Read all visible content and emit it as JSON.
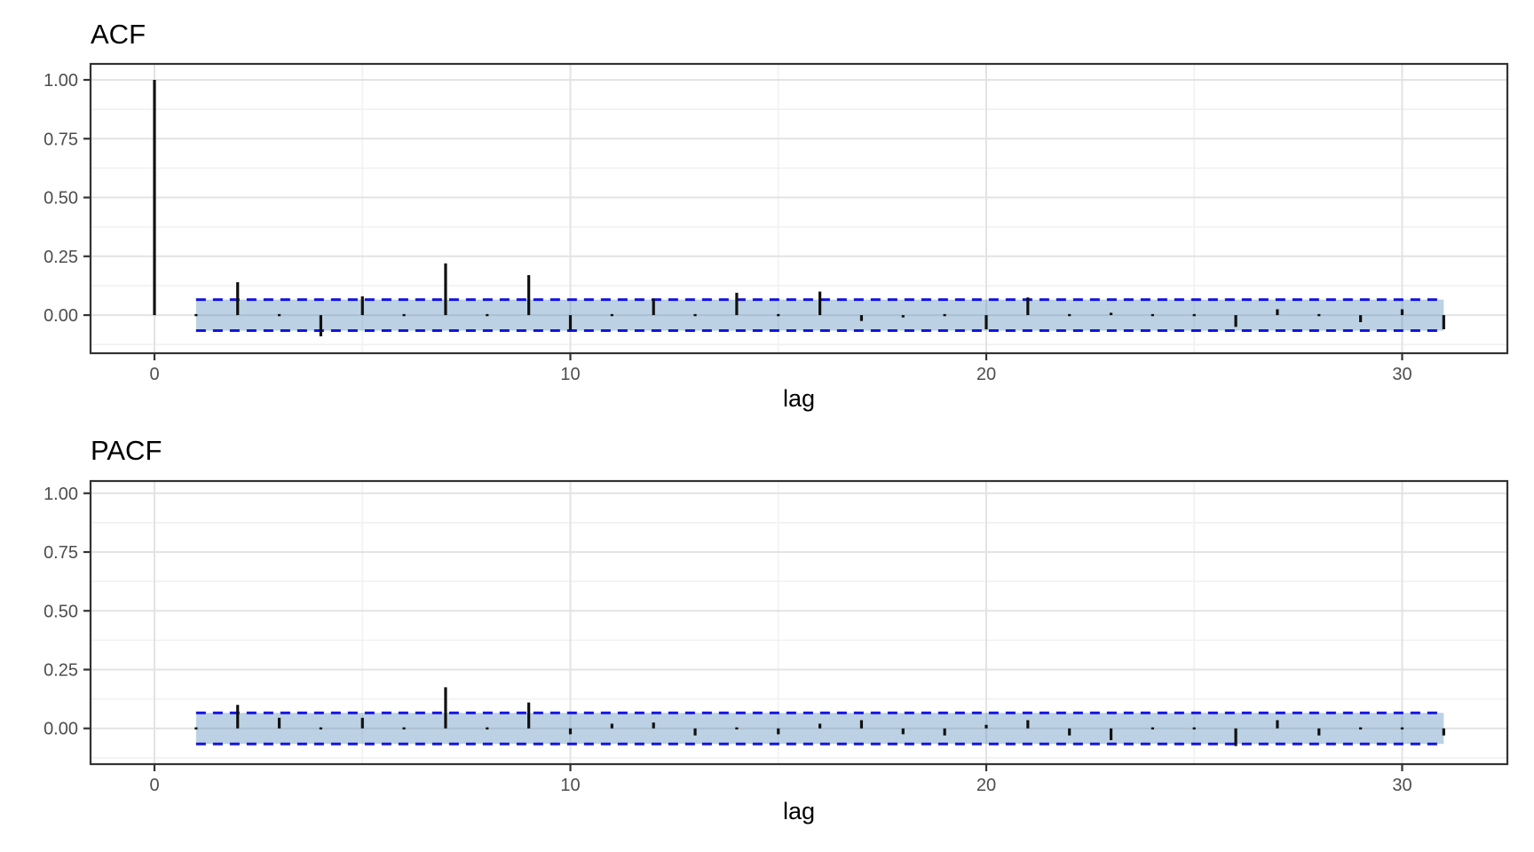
{
  "colors": {
    "ci_line": "#1414E0",
    "ci_fill": "#4682B4",
    "bar": "#111111",
    "grid_major": "#E3E3E3",
    "grid_minor": "#F1F1F1",
    "panel_border": "#333333",
    "axis_text": "#4D4D4D",
    "title_text": "#000000",
    "background": "#FFFFFF"
  },
  "chart_data": [
    {
      "type": "bar",
      "title": "ACF",
      "xlabel": "lag",
      "ylabel": "",
      "lags": [
        0,
        1,
        2,
        3,
        4,
        5,
        6,
        7,
        8,
        9,
        10,
        11,
        12,
        13,
        14,
        15,
        16,
        17,
        18,
        19,
        20,
        21,
        22,
        23,
        24,
        25,
        26,
        27,
        28,
        29,
        30,
        31
      ],
      "values": [
        1.0,
        0.0,
        0.14,
        -0.005,
        -0.09,
        0.08,
        0.0,
        0.22,
        0.005,
        0.17,
        -0.065,
        0.005,
        0.07,
        0.0,
        0.095,
        0.0,
        0.1,
        -0.025,
        -0.01,
        0.005,
        -0.06,
        0.075,
        0.0,
        0.01,
        -0.005,
        0.005,
        -0.05,
        0.025,
        -0.005,
        -0.03,
        0.025,
        -0.06
      ],
      "conf_band": {
        "lower": -0.066,
        "upper": 0.066,
        "lag_start": 1,
        "lag_end": 31
      },
      "x_ticks": [
        0,
        10,
        20,
        30
      ],
      "x_tick_labels": [
        "0",
        "10",
        "20",
        "30"
      ],
      "x_minor": [
        5,
        15,
        25
      ],
      "y_ticks": [
        0,
        0.25,
        0.5,
        0.75,
        1.0
      ],
      "y_tick_labels": [
        "0.00",
        "0.25",
        "0.50",
        "0.75",
        "1.00"
      ],
      "y_minor": [
        -0.125,
        0.125,
        0.375,
        0.625,
        0.875
      ],
      "xlim": [
        -1.537,
        32.53
      ],
      "ylim": [
        -0.162,
        1.068
      ],
      "grid": true,
      "legend": "none"
    },
    {
      "type": "bar",
      "title": "PACF",
      "xlabel": "lag",
      "ylabel": "",
      "lags": [
        1,
        2,
        3,
        4,
        5,
        6,
        7,
        8,
        9,
        10,
        11,
        12,
        13,
        14,
        15,
        16,
        17,
        18,
        19,
        20,
        21,
        22,
        23,
        24,
        25,
        26,
        27,
        28,
        29,
        30,
        31
      ],
      "values": [
        0.0,
        0.1,
        0.045,
        0.0,
        0.045,
        0.0,
        0.175,
        0.0,
        0.11,
        -0.025,
        0.02,
        0.025,
        -0.03,
        -0.005,
        -0.025,
        0.02,
        0.035,
        -0.025,
        -0.03,
        0.015,
        0.035,
        -0.03,
        -0.05,
        0.005,
        0.005,
        -0.075,
        0.035,
        -0.03,
        -0.005,
        -0.005,
        -0.03
      ],
      "conf_band": {
        "lower": -0.066,
        "upper": 0.066,
        "lag_start": 1,
        "lag_end": 31
      },
      "x_ticks": [
        0,
        10,
        20,
        30
      ],
      "x_tick_labels": [
        "0",
        "10",
        "20",
        "30"
      ],
      "x_minor": [
        5,
        15,
        25
      ],
      "y_ticks": [
        0,
        0.25,
        0.5,
        0.75,
        1.0
      ],
      "y_tick_labels": [
        "0.00",
        "0.25",
        "0.50",
        "0.75",
        "1.00"
      ],
      "y_minor": [
        -0.125,
        0.125,
        0.375,
        0.625,
        0.875
      ],
      "xlim": [
        -1.537,
        32.53
      ],
      "ylim": [
        -0.152,
        1.052
      ],
      "grid": true,
      "legend": "none"
    }
  ]
}
